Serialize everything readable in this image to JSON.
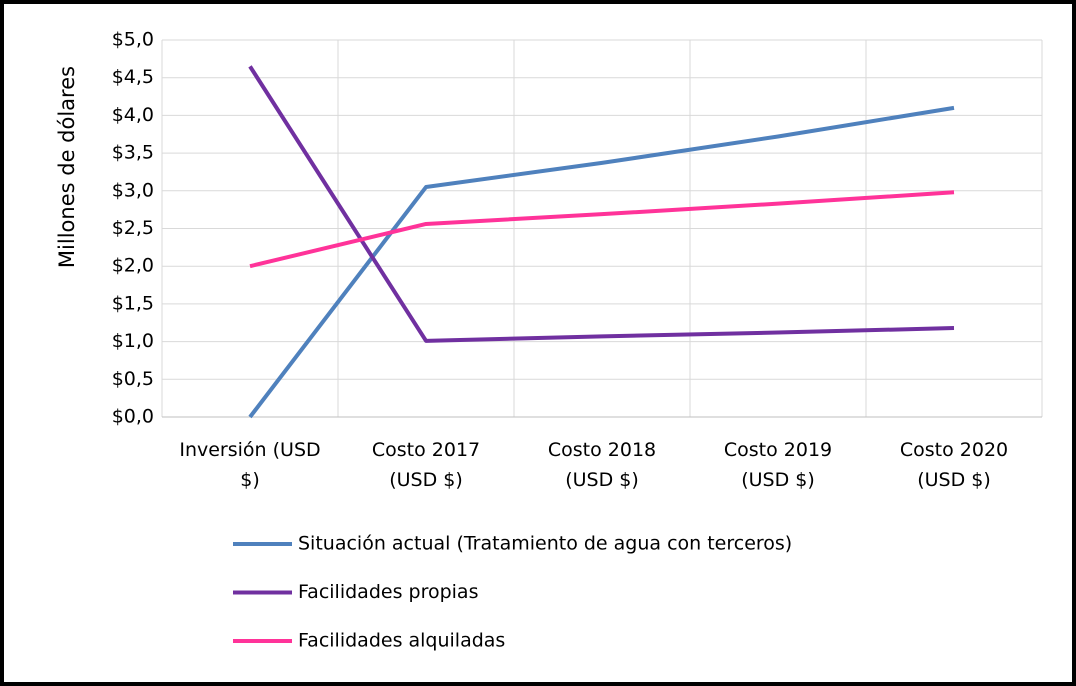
{
  "chart_data": {
    "type": "line",
    "ylabel": "Millones de dólares",
    "categories": [
      "Inversión (USD $)",
      "Costo 2017 (USD $)",
      "Costo 2018 (USD $)",
      "Costo 2019 (USD $)",
      "Costo 2020 (USD $)"
    ],
    "series": [
      {
        "name": "Situación actual (Tratamiento de agua con terceros)",
        "color": "#4f81bd",
        "values": [
          0,
          3.05,
          3.37,
          3.72,
          4.1
        ]
      },
      {
        "name": "Facilidades propias",
        "color": "#7030a0",
        "values": [
          4.65,
          1.01,
          1.07,
          1.12,
          1.18
        ]
      },
      {
        "name": "Facilidades alquiladas",
        "color": "#ff3399",
        "values": [
          2.0,
          2.56,
          2.69,
          2.83,
          2.98
        ]
      }
    ],
    "ylim": [
      0,
      5
    ],
    "yticks": [
      {
        "value": 0,
        "label": "$0,0"
      },
      {
        "value": 0.5,
        "label": "$0,5"
      },
      {
        "value": 1,
        "label": "$1,0"
      },
      {
        "value": 1.5,
        "label": "$1,5"
      },
      {
        "value": 2,
        "label": "$2,0"
      },
      {
        "value": 2.5,
        "label": "$2,5"
      },
      {
        "value": 3,
        "label": "$3,0"
      },
      {
        "value": 3.5,
        "label": "$3,5"
      },
      {
        "value": 4,
        "label": "$4,0"
      },
      {
        "value": 4.5,
        "label": "$4,5"
      },
      {
        "value": 5,
        "label": "$5,0"
      }
    ],
    "grid": true,
    "legend": "bottom"
  }
}
